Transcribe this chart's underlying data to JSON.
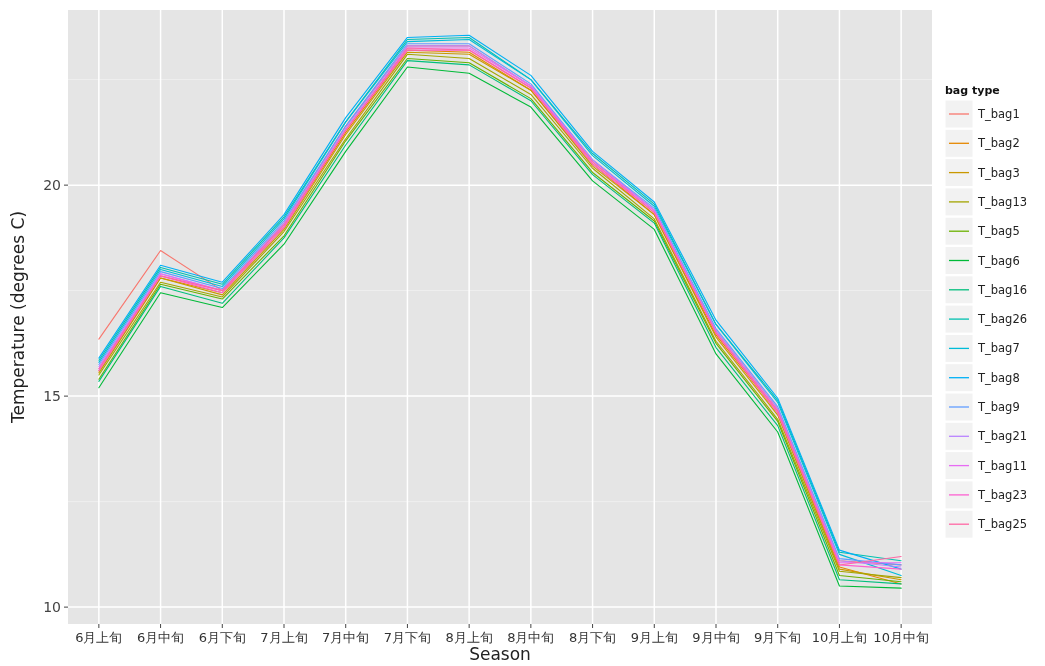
{
  "chart_data": {
    "type": "line",
    "xlabel": "Season",
    "ylabel": "Temperature  (degrees C)",
    "legend_title": "bag type",
    "categories": [
      "6月上旬",
      "6月中旬",
      "6月下旬",
      "7月上旬",
      "7月中旬",
      "7月下旬",
      "8月上旬",
      "8月中旬",
      "8月下旬",
      "9月上旬",
      "9月中旬",
      "9月下旬",
      "10月上旬",
      "10月中旬"
    ],
    "ylim": [
      9.6,
      24.15
    ],
    "yticks": [
      10,
      15,
      20
    ],
    "grid": true,
    "legend": "right",
    "line_style": "solid",
    "marker": "none",
    "series": [
      {
        "name": "T_bag1",
        "color": "#F8766D",
        "values": [
          16.35,
          18.45,
          17.5,
          19.1,
          21.4,
          23.3,
          23.3,
          22.35,
          20.6,
          19.4,
          16.55,
          14.7,
          11.1,
          11.0
        ]
      },
      {
        "name": "T_bag2",
        "color": "#E58700",
        "values": [
          15.6,
          17.8,
          17.45,
          19.0,
          21.25,
          23.2,
          23.15,
          22.25,
          20.5,
          19.3,
          16.45,
          14.6,
          10.95,
          10.55
        ]
      },
      {
        "name": "T_bag3",
        "color": "#C99800",
        "values": [
          15.55,
          17.8,
          17.4,
          18.95,
          21.2,
          23.15,
          23.1,
          22.25,
          20.45,
          19.3,
          16.4,
          14.55,
          10.9,
          10.65
        ]
      },
      {
        "name": "T_bag13",
        "color": "#A3A500",
        "values": [
          15.5,
          17.7,
          17.35,
          18.9,
          21.1,
          23.1,
          23.0,
          22.15,
          20.4,
          19.2,
          16.3,
          14.45,
          10.85,
          10.7
        ]
      },
      {
        "name": "T_bag5",
        "color": "#6BB100",
        "values": [
          15.4,
          17.65,
          17.3,
          18.8,
          21.05,
          23.0,
          22.9,
          22.05,
          20.3,
          19.15,
          16.25,
          14.4,
          10.75,
          10.6
        ]
      },
      {
        "name": "T_bag6",
        "color": "#00BA38",
        "values": [
          15.2,
          17.45,
          17.1,
          18.6,
          20.8,
          22.8,
          22.65,
          21.85,
          20.1,
          18.95,
          16.0,
          14.15,
          10.5,
          10.45
        ]
      },
      {
        "name": "T_bag16",
        "color": "#00BF7D",
        "values": [
          15.35,
          17.6,
          17.2,
          18.75,
          20.95,
          22.95,
          22.85,
          22.0,
          20.25,
          19.1,
          16.15,
          14.3,
          10.65,
          10.55
        ]
      },
      {
        "name": "T_bag26",
        "color": "#00C0AF",
        "values": [
          15.85,
          18.05,
          17.65,
          19.25,
          21.5,
          23.45,
          23.5,
          22.5,
          20.75,
          19.55,
          16.7,
          14.9,
          11.3,
          11.1
        ]
      },
      {
        "name": "T_bag7",
        "color": "#00BCD8",
        "values": [
          15.8,
          18.0,
          17.6,
          19.2,
          21.5,
          23.4,
          23.45,
          22.5,
          20.7,
          19.5,
          16.7,
          14.85,
          11.25,
          10.75
        ]
      },
      {
        "name": "T_bag8",
        "color": "#00B0F6",
        "values": [
          15.9,
          18.1,
          17.7,
          19.3,
          21.6,
          23.5,
          23.55,
          22.6,
          20.8,
          19.6,
          16.8,
          14.95,
          11.35,
          10.9
        ]
      },
      {
        "name": "T_bag9",
        "color": "#619CFF",
        "values": [
          15.75,
          17.95,
          17.55,
          19.15,
          21.4,
          23.35,
          23.35,
          22.4,
          20.6,
          19.45,
          16.6,
          14.75,
          11.15,
          11.0
        ]
      },
      {
        "name": "T_bag21",
        "color": "#B983FF",
        "values": [
          15.7,
          17.9,
          17.5,
          19.1,
          21.35,
          23.3,
          23.3,
          22.35,
          20.6,
          19.4,
          16.55,
          14.7,
          11.1,
          10.95
        ]
      },
      {
        "name": "T_bag11",
        "color": "#E76BF3",
        "values": [
          15.65,
          17.9,
          17.5,
          19.05,
          21.3,
          23.25,
          23.25,
          22.35,
          20.55,
          19.4,
          16.5,
          14.65,
          11.05,
          11.05
        ]
      },
      {
        "name": "T_bag23",
        "color": "#FD61D1",
        "values": [
          15.6,
          17.85,
          17.45,
          19.0,
          21.3,
          23.2,
          23.2,
          22.3,
          20.5,
          19.35,
          16.5,
          14.6,
          11.0,
          10.9
        ]
      },
      {
        "name": "T_bag25",
        "color": "#FF67A4",
        "values": [
          15.65,
          17.85,
          17.5,
          19.05,
          21.3,
          23.25,
          23.2,
          22.3,
          20.55,
          19.35,
          16.5,
          14.65,
          11.0,
          11.2
        ]
      }
    ]
  }
}
